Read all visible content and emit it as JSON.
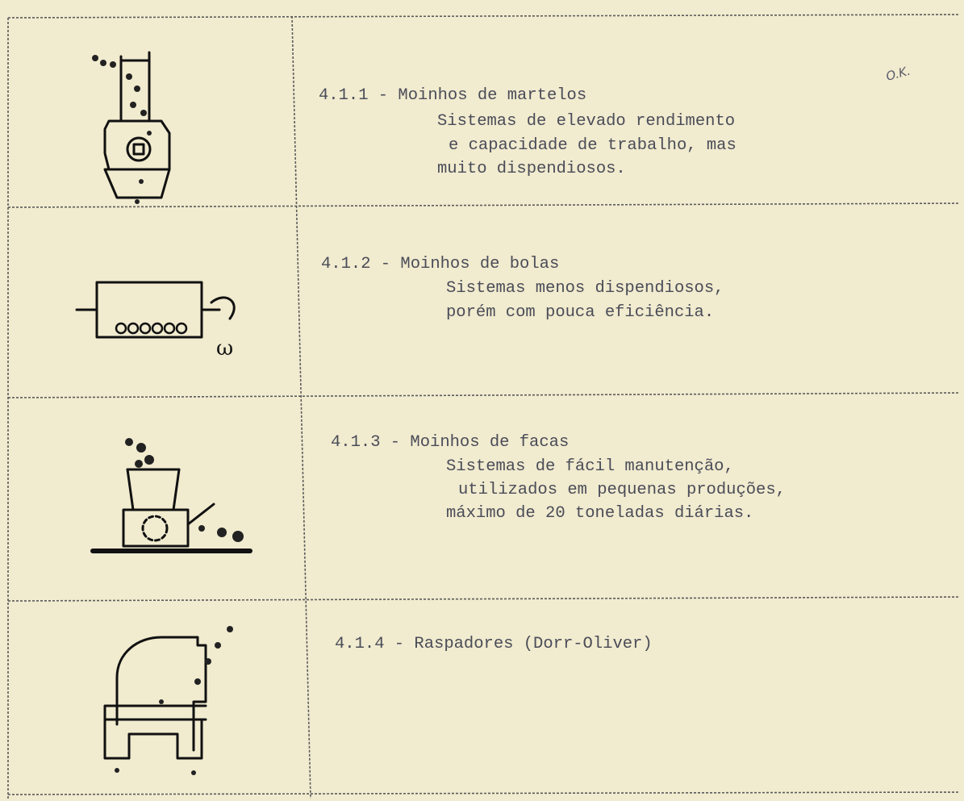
{
  "annotation": "O.K.",
  "rows": [
    {
      "heading": "4.1.1 - Moinhos de martelos",
      "description": [
        "Sistemas de elevado rendimento",
        "e capacidade de trabalho, mas",
        "muito dispendiosos."
      ]
    },
    {
      "heading": "4.1.2 - Moinhos de bolas",
      "description": [
        "Sistemas menos dispendiosos,",
        "porém com pouca eficiência."
      ]
    },
    {
      "heading": "4.1.3 - Moinhos de facas",
      "description": [
        "Sistemas de fácil manutenção,",
        "utilizados em pequenas produções,",
        "máximo de 20 toneladas diárias."
      ]
    },
    {
      "heading": "4.1.4 - Raspadores (Dorr-Oliver)",
      "description": []
    }
  ]
}
